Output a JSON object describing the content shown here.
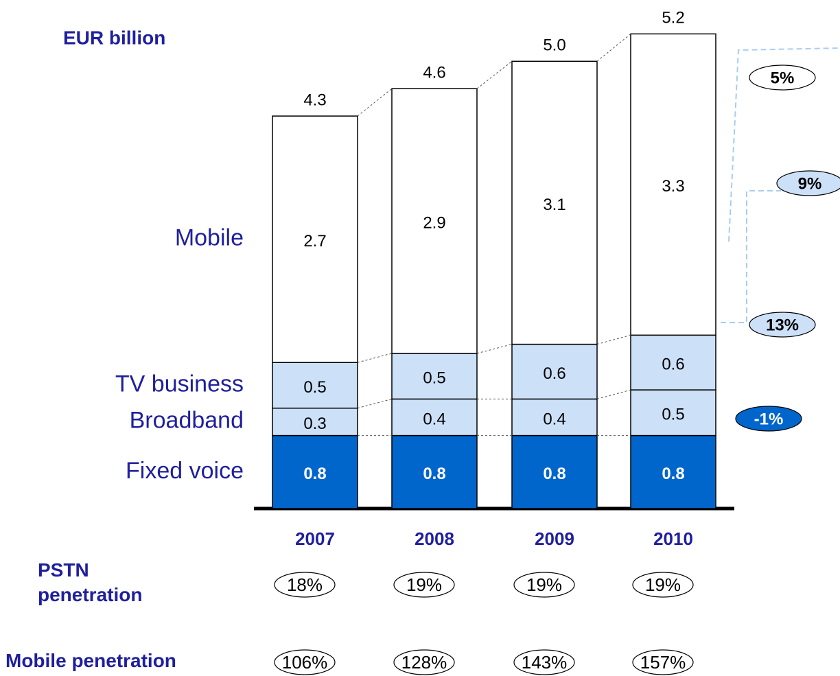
{
  "chart_data": {
    "type": "stacked_bar",
    "y_label": "EUR billion",
    "categories": [
      "2007",
      "2008",
      "2009",
      "2010"
    ],
    "series": [
      {
        "name": "Fixed voice",
        "color": "#0066cc",
        "label_color": "#ffffff",
        "values": [
          0.8,
          0.8,
          0.8,
          0.8
        ]
      },
      {
        "name": "Broadband",
        "color": "#cce0f8",
        "label_color": "#000000",
        "values": [
          0.3,
          0.4,
          0.4,
          0.5
        ]
      },
      {
        "name": "TV business",
        "color": "#cce0f8",
        "label_color": "#000000",
        "values": [
          0.5,
          0.5,
          0.6,
          0.6
        ]
      },
      {
        "name": "Mobile",
        "color": "#ffffff",
        "label_color": "#000000",
        "values": [
          2.7,
          2.9,
          3.1,
          3.3
        ]
      }
    ],
    "totals": {
      "values": [
        4.3,
        4.6,
        5.0,
        5.2
      ],
      "value_labels": [
        "4.3",
        "4.6",
        "5.0",
        "5.2"
      ]
    },
    "growth": {
      "values": [
        5,
        9,
        13,
        -1
      ],
      "value_labels": [
        "5%",
        "9%",
        "13%",
        "-1%"
      ],
      "colors": [
        "#ffffff",
        "#cce0f8",
        "#cce0f8",
        "#0066cc"
      ]
    },
    "rows": [
      {
        "name": "PSTN penetration",
        "values": [
          18,
          19,
          19,
          19
        ],
        "value_labels": [
          "18%",
          "19%",
          "19%",
          "19%"
        ]
      },
      {
        "name": "Mobile penetration",
        "values": [
          106,
          128,
          143,
          157
        ],
        "value_labels": [
          "106%",
          "128%",
          "143%",
          "157%"
        ]
      }
    ]
  }
}
